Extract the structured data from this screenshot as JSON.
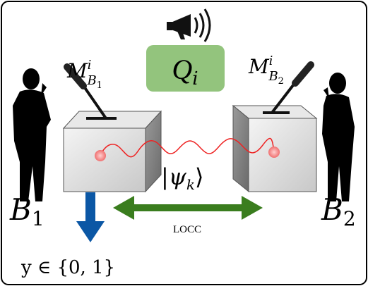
{
  "referee": {
    "base": "Q",
    "sub": "i"
  },
  "boxes": [
    {
      "measurement": {
        "base": "M",
        "sup": "i",
        "sub": "B",
        "subsub": "1"
      }
    },
    {
      "measurement": {
        "base": "M",
        "sup": "i",
        "sub": "B",
        "subsub": "2"
      }
    }
  ],
  "parties": [
    {
      "base": "B",
      "sub": "1"
    },
    {
      "base": "B",
      "sub": "2"
    }
  ],
  "state": {
    "open": "|",
    "base": "ψ",
    "sub": "k",
    "close": "⟩"
  },
  "channel": "LOCC",
  "output": "y ∈ {0, 1}"
}
